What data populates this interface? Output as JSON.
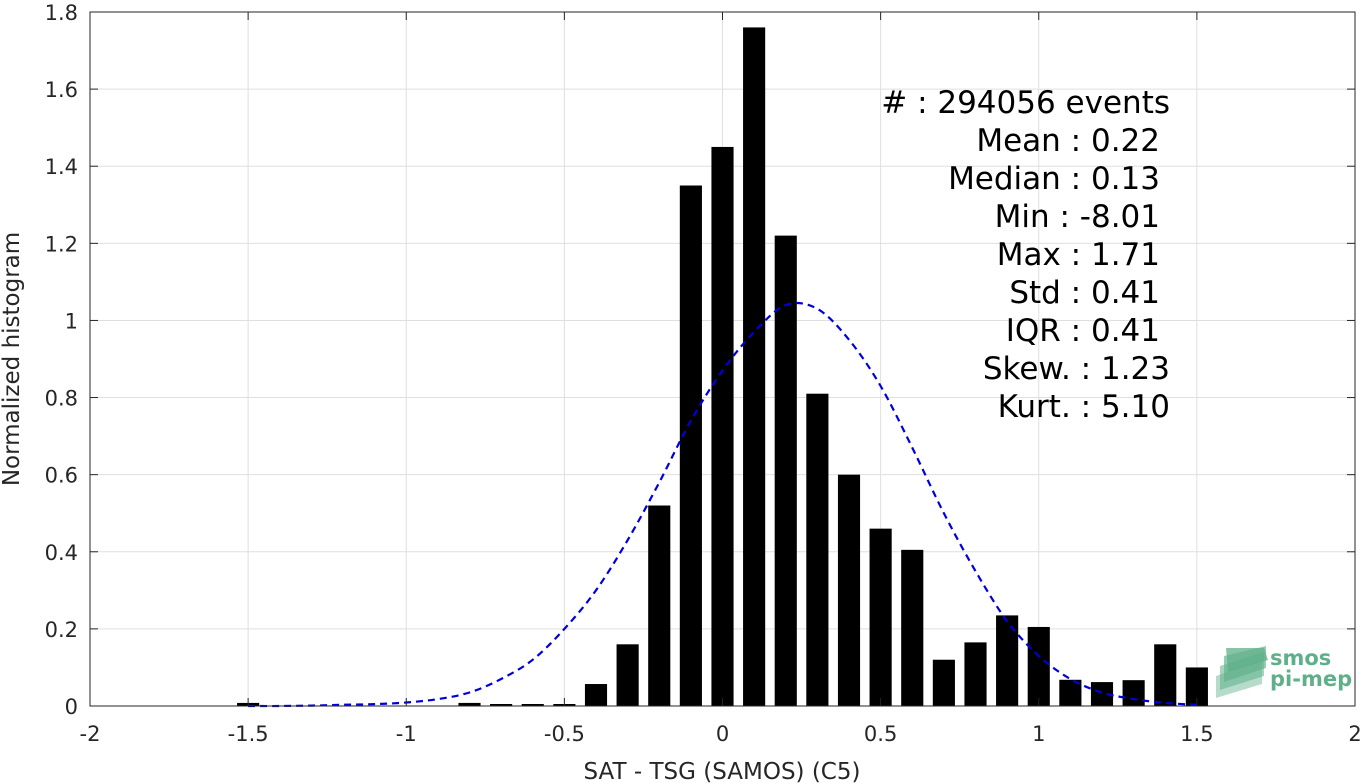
{
  "chart_data": {
    "type": "bar",
    "xlabel": "SAT - TSG (SAMOS) (C5)",
    "ylabel": "Normalized histogram",
    "xlim": [
      -2,
      2
    ],
    "ylim": [
      0,
      1.8
    ],
    "grid": true,
    "xticks": [
      "-2",
      "-1.5",
      "-1",
      "-0.5",
      "0",
      "0.5",
      "1",
      "1.5",
      "2"
    ],
    "yticks": [
      "0",
      "0.2",
      "0.4",
      "0.6",
      "0.8",
      "1",
      "1.2",
      "1.4",
      "1.6",
      "1.8"
    ],
    "bar_width": 0.07,
    "x": [
      -1.5,
      -1.4,
      -1.3,
      -1.2,
      -1.1,
      -1.0,
      -0.9,
      -0.8,
      -0.7,
      -0.6,
      -0.5,
      -0.4,
      -0.3,
      -0.2,
      -0.1,
      0.0,
      0.1,
      0.2,
      0.3,
      0.4,
      0.5,
      0.6,
      0.7,
      0.8,
      0.9,
      1.0,
      1.1,
      1.2,
      1.3,
      1.4,
      1.5
    ],
    "values": [
      0.008,
      0.0,
      0.0,
      0.0,
      0.0,
      0.0,
      0.0,
      0.008,
      0.004,
      0.003,
      0.004,
      0.057,
      0.16,
      0.52,
      1.35,
      1.45,
      1.76,
      1.22,
      0.81,
      0.6,
      0.46,
      0.405,
      0.12,
      0.165,
      0.235,
      0.205,
      0.068,
      0.062,
      0.067,
      0.16,
      0.1
    ],
    "fit_curve": {
      "style": "dashed",
      "color": "#0000dd",
      "x": [
        -1.5,
        -1.4,
        -1.3,
        -1.2,
        -1.1,
        -1.0,
        -0.9,
        -0.8,
        -0.7,
        -0.6,
        -0.5,
        -0.4,
        -0.3,
        -0.2,
        -0.1,
        0.0,
        0.1,
        0.2,
        0.3,
        0.4,
        0.5,
        0.6,
        0.7,
        0.8,
        0.9,
        1.0,
        1.1,
        1.2,
        1.3,
        1.4,
        1.5
      ],
      "y": [
        0.0,
        0.0,
        0.001,
        0.003,
        0.005,
        0.009,
        0.018,
        0.035,
        0.07,
        0.12,
        0.2,
        0.3,
        0.43,
        0.58,
        0.74,
        0.87,
        0.97,
        1.04,
        1.03,
        0.95,
        0.83,
        0.67,
        0.5,
        0.35,
        0.22,
        0.13,
        0.07,
        0.035,
        0.018,
        0.008,
        0.003
      ]
    },
    "stats": [
      {
        "text": "#  : 294056 events"
      },
      {
        "text": "Mean : 0.22"
      },
      {
        "text": "Median : 0.13"
      },
      {
        "text": "Min : -8.01"
      },
      {
        "text": "Max : 1.71"
      },
      {
        "text": "Std : 0.41"
      },
      {
        "text": "IQR : 0.41"
      },
      {
        "text": "Skew. : 1.23"
      },
      {
        "text": "Kurt. : 5.10"
      }
    ]
  },
  "logo": {
    "line1": "smos",
    "line2": "pi-mep",
    "color": "#5fb08a"
  }
}
